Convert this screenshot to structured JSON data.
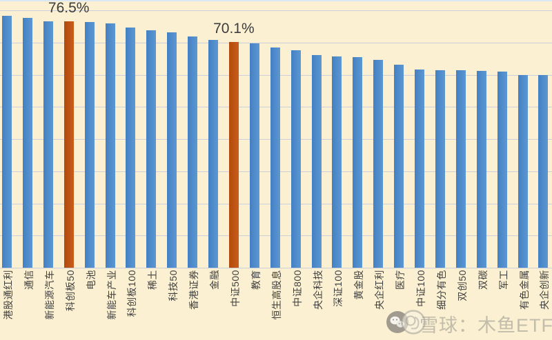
{
  "chart_data": {
    "type": "bar",
    "title": "",
    "xlabel": "",
    "ylabel": "",
    "unit": "%",
    "categories": [
      "港股通红利",
      "通信",
      "新能源汽车",
      "科创板50",
      "电池",
      "新能车产业",
      "科创板100",
      "稀土",
      "科技50",
      "香港证券",
      "金融",
      "中证500",
      "教育",
      "恒生高股息",
      "中证800",
      "央企科技",
      "深证100",
      "黄金股",
      "央企红利",
      "医疗",
      "中证100",
      "细分有色",
      "双创50",
      "双碳",
      "军工",
      "有色金属",
      "央企创新"
    ],
    "values": [
      78.3,
      77.6,
      76.6,
      76.5,
      76.3,
      75.9,
      74.7,
      73.9,
      73.2,
      71.8,
      70.9,
      70.1,
      69.7,
      68.4,
      67.7,
      66.2,
      65.7,
      65.4,
      64.5,
      63.0,
      61.6,
      61.4,
      61.3,
      61.2,
      60.9,
      60.0,
      59.8
    ],
    "highlight_indices": [
      3,
      11
    ],
    "annotations": [
      {
        "index": 3,
        "text": "76.5%"
      },
      {
        "index": 11,
        "text": "70.1%"
      }
    ],
    "ylim": [
      0,
      80
    ],
    "gridlines": [
      0,
      10,
      20,
      30,
      40,
      50,
      60,
      70,
      80
    ],
    "grid": "on",
    "legend": "none",
    "colors": {
      "bar": "#4C89C8",
      "highlight_bar": "#BF4F10",
      "background": "#FBF0D1",
      "gridline": "#CBCFDC",
      "label_text": "#3F3F3F",
      "annotation_text": "#3C3C3C"
    }
  },
  "watermark": {
    "text": "雪球：木鱼ETF",
    "icons": [
      "wechat-icon",
      "xueqiu-icon"
    ]
  }
}
